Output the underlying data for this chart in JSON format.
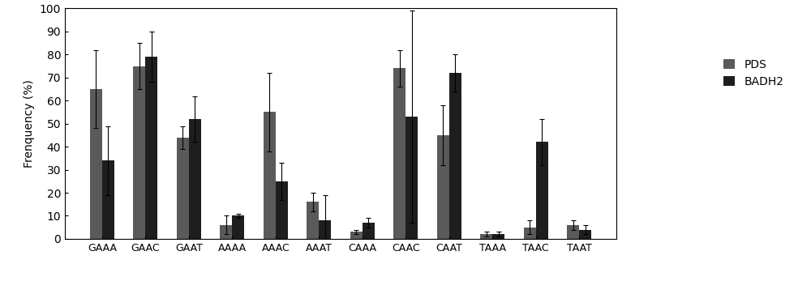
{
  "categories": [
    "GAAA",
    "GAAC",
    "GAAT",
    "AAAA",
    "AAAC",
    "AAAT",
    "CAAA",
    "CAAC",
    "CAAT",
    "TAAA",
    "TAAC",
    "TAAT"
  ],
  "pds_values": [
    65,
    75,
    44,
    6,
    55,
    16,
    3,
    74,
    45,
    2,
    5,
    6
  ],
  "badh2_values": [
    34,
    79,
    52,
    10,
    25,
    8,
    7,
    53,
    72,
    2,
    42,
    4
  ],
  "pds_errors": [
    17,
    10,
    5,
    4,
    17,
    4,
    1,
    8,
    13,
    1,
    3,
    2
  ],
  "badh2_errors": [
    15,
    11,
    10,
    1,
    8,
    11,
    2,
    46,
    8,
    1,
    10,
    2
  ],
  "pds_color": "#5a5a5a",
  "badh2_color": "#1e1e1e",
  "ylabel": "Frenquency (%)",
  "ylim": [
    0,
    100
  ],
  "yticks": [
    0,
    10,
    20,
    30,
    40,
    50,
    60,
    70,
    80,
    90,
    100
  ],
  "legend_labels": [
    "PDS",
    "BADH2"
  ],
  "bar_width": 0.28,
  "figsize": [
    10,
    3.47
  ],
  "dpi": 100
}
